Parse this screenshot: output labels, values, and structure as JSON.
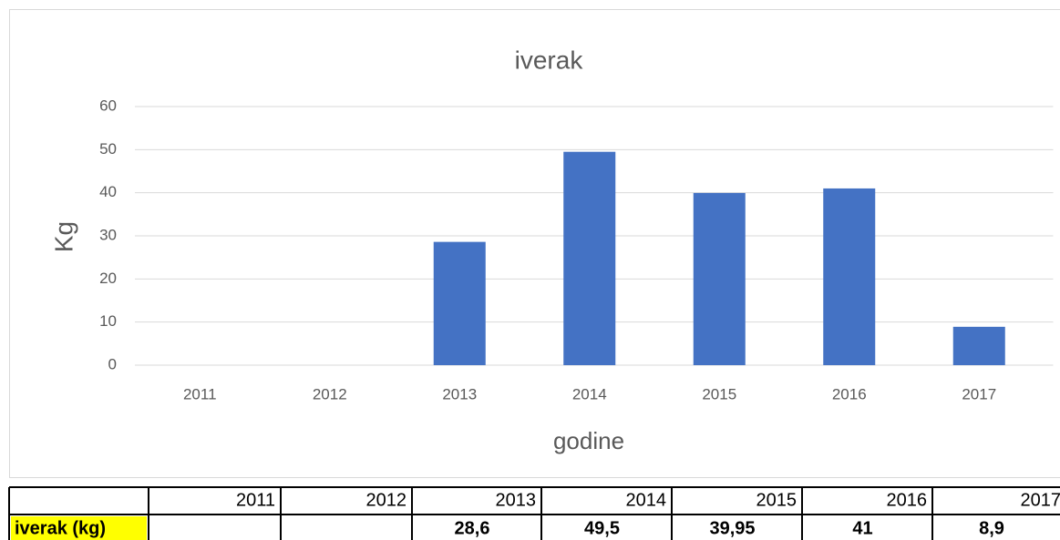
{
  "chart_data": {
    "type": "bar",
    "title": "iverak",
    "x_label": "godine",
    "y_label": "Kg",
    "categories": [
      "2011",
      "2012",
      "2013",
      "2014",
      "2015",
      "2016",
      "2017"
    ],
    "values": [
      null,
      null,
      28.6,
      49.5,
      39.95,
      41,
      8.9
    ],
    "value_labels": [
      null,
      null,
      "28,6",
      "49,5",
      "39,95",
      "41",
      "8,9"
    ],
    "table_row_label": "iverak (kg)",
    "color": "#4472c4",
    "ylim": [
      0,
      60
    ],
    "yticks": [
      0,
      10,
      20,
      30,
      40,
      50,
      60
    ],
    "grid": true
  }
}
